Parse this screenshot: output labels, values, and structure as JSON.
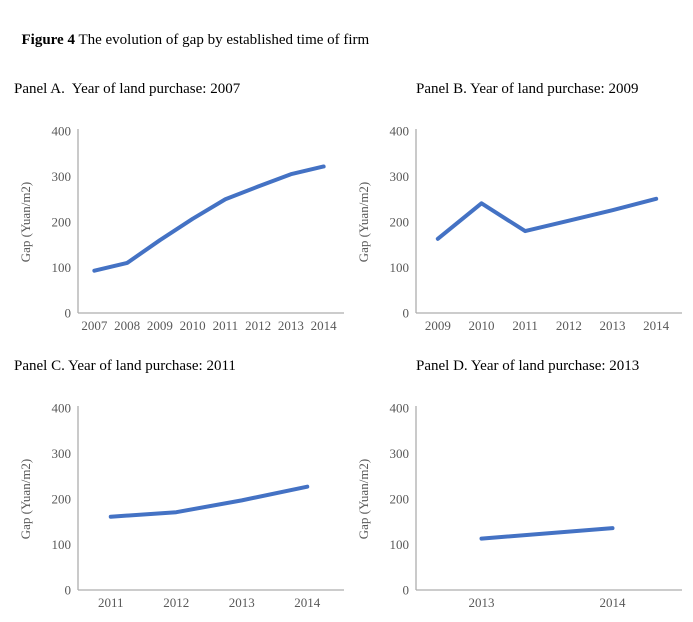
{
  "figure": {
    "title_bold": "Figure 4",
    "title_rest": " The evolution of gap by established time of firm"
  },
  "colors": {
    "line": "#4472C4",
    "axis": "#ADADAD",
    "tick_label": "#595959",
    "background": "#FFFFFF"
  },
  "chart_data": [
    {
      "type": "line",
      "panel_title": "Panel A.  Year of land purchase: 2007",
      "categories": [
        "2007",
        "2008",
        "2009",
        "2010",
        "2011",
        "2012",
        "2013",
        "2014"
      ],
      "values": [
        93,
        110,
        160,
        207,
        250,
        278,
        305,
        322
      ],
      "ylabel": "Gap (Yuan/m2)",
      "xlabel": "",
      "ylim": [
        0,
        400
      ],
      "yticks": [
        0,
        100,
        200,
        300,
        400
      ],
      "grid": false,
      "legend": false
    },
    {
      "type": "line",
      "panel_title": "Panel B. Year of land purchase: 2009",
      "categories": [
        "2009",
        "2010",
        "2011",
        "2012",
        "2013",
        "2014"
      ],
      "values": [
        163,
        241,
        180,
        203,
        226,
        251
      ],
      "ylabel": "Gap (Yuan/m2)",
      "xlabel": "",
      "ylim": [
        0,
        400
      ],
      "yticks": [
        0,
        100,
        200,
        300,
        400
      ],
      "grid": false,
      "legend": false
    },
    {
      "type": "line",
      "panel_title": "Panel C. Year of land purchase: 2011",
      "categories": [
        "2011",
        "2012",
        "2013",
        "2014"
      ],
      "values": [
        161,
        171,
        197,
        227
      ],
      "ylabel": "Gap (Yuan/m2)",
      "xlabel": "",
      "ylim": [
        0,
        400
      ],
      "yticks": [
        0,
        100,
        200,
        300,
        400
      ],
      "grid": false,
      "legend": false
    },
    {
      "type": "line",
      "panel_title": "Panel D. Year of land purchase: 2013",
      "categories": [
        "2013",
        "2014"
      ],
      "values": [
        113,
        136
      ],
      "ylabel": "Gap (Yuan/m2)",
      "xlabel": "",
      "ylim": [
        0,
        400
      ],
      "yticks": [
        0,
        100,
        200,
        300,
        400
      ],
      "grid": false,
      "legend": false
    }
  ]
}
